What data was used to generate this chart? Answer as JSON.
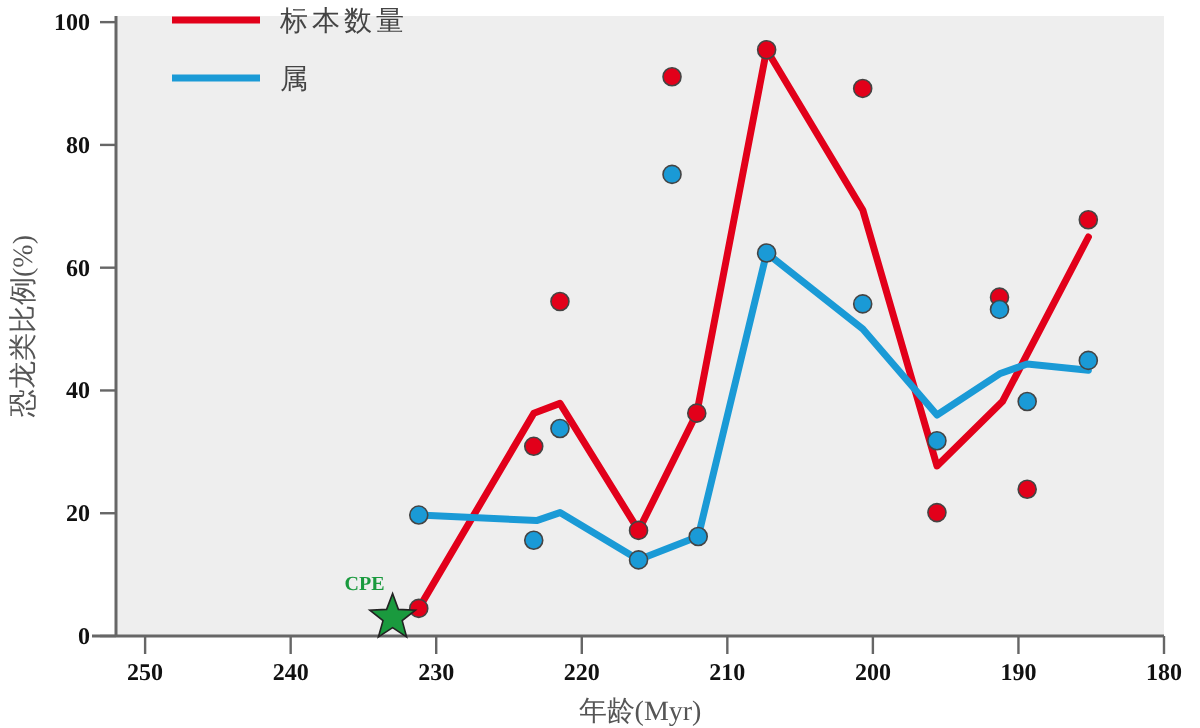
{
  "chart_data": {
    "type": "line",
    "xlabel": "年龄(Myr)",
    "ylabel": "恐龙类比例(%)",
    "xlim": [
      252,
      180
    ],
    "xticks": [
      250,
      240,
      230,
      220,
      210,
      200,
      190,
      180
    ],
    "ylim": [
      0,
      101
    ],
    "yticks": [
      0,
      20,
      40,
      60,
      80,
      100
    ],
    "grid": false,
    "legend": "top left",
    "series": [
      {
        "name": "标本数量",
        "type": "line",
        "color": "#e2001a",
        "marker": "none",
        "x": [
          231.2,
          223.3,
          221.5,
          216.1,
          212.1,
          207.3,
          200.7,
          195.6,
          191.1,
          185.2
        ],
        "values": [
          4.5,
          36.3,
          37.9,
          17.2,
          36.3,
          95.5,
          69.4,
          27.7,
          38.2,
          65
        ]
      },
      {
        "name": "属",
        "type": "line",
        "color": "#1a9ad6",
        "marker": "none",
        "x": [
          231.2,
          223.1,
          221.5,
          216.1,
          212,
          207.3,
          200.7,
          195.6,
          191.3,
          189.4,
          185.2
        ],
        "values": [
          19.7,
          18.8,
          20.1,
          12.4,
          16.2,
          62.4,
          50,
          36,
          42.7,
          44.3,
          43.3
        ]
      },
      {
        "type": "scatter",
        "color": "#e2001a",
        "marker": "circle",
        "x": [
          231.2,
          223.3,
          221.5,
          213.8,
          216.1,
          212.1,
          207.3,
          200.7,
          195.6,
          191.3,
          189.4,
          185.2
        ],
        "values": [
          4.5,
          30.9,
          54.5,
          91.1,
          17.2,
          36.3,
          95.5,
          89.2,
          20.1,
          55.2,
          23.9,
          67.8
        ]
      },
      {
        "type": "scatter",
        "color": "#1a9ad6",
        "marker": "circle",
        "x": [
          231.2,
          223.3,
          221.5,
          213.8,
          216.1,
          212,
          207.3,
          200.7,
          195.6,
          191.3,
          189.4,
          185.2
        ],
        "values": [
          19.7,
          15.6,
          33.8,
          75.2,
          12.4,
          16.2,
          62.4,
          54.1,
          31.8,
          53.2,
          38.2,
          44.9
        ]
      },
      {
        "type": "scatter",
        "color": "#1a9a3e",
        "marker": "star",
        "x": [
          233
        ],
        "values": [
          3
        ]
      }
    ],
    "annotations": [
      {
        "text": "CPE",
        "x": 233,
        "y": 3
      }
    ]
  }
}
